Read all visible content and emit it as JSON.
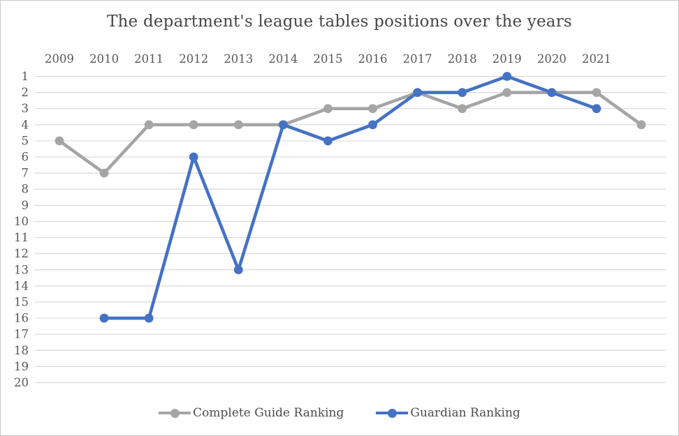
{
  "chart_data": {
    "type": "line",
    "title": "The department's league tables positions over the years",
    "categories": [
      "2009",
      "2010",
      "2011",
      "2012",
      "2013",
      "2014",
      "2015",
      "2016",
      "2017",
      "2018",
      "2019",
      "2020",
      "2021",
      ""
    ],
    "series": [
      {
        "name": "Complete Guide Ranking",
        "color": "#a5a5a5",
        "values": [
          5,
          7,
          4,
          4,
          4,
          4,
          3,
          3,
          2,
          3,
          2,
          2,
          2,
          4
        ]
      },
      {
        "name": "Guardian Ranking",
        "color": "#4472c4",
        "values": [
          null,
          16,
          16,
          6,
          13,
          4,
          5,
          4,
          2,
          2,
          1,
          2,
          3,
          null
        ]
      }
    ],
    "y_tick_labels": [
      "1",
      "2",
      "3",
      "4",
      "5",
      "6",
      "7",
      "8",
      "9",
      "10",
      "11",
      "12",
      "13",
      "14",
      "15",
      "16",
      "17",
      "18",
      "19",
      "20"
    ],
    "y_axis": {
      "min": 1,
      "max": 20,
      "inverted": true
    },
    "xlabel": "",
    "ylabel": "",
    "grid": "horizontal",
    "legend_position": "bottom",
    "gridline_color": "#d9d9d9",
    "text_color": "#585858"
  }
}
